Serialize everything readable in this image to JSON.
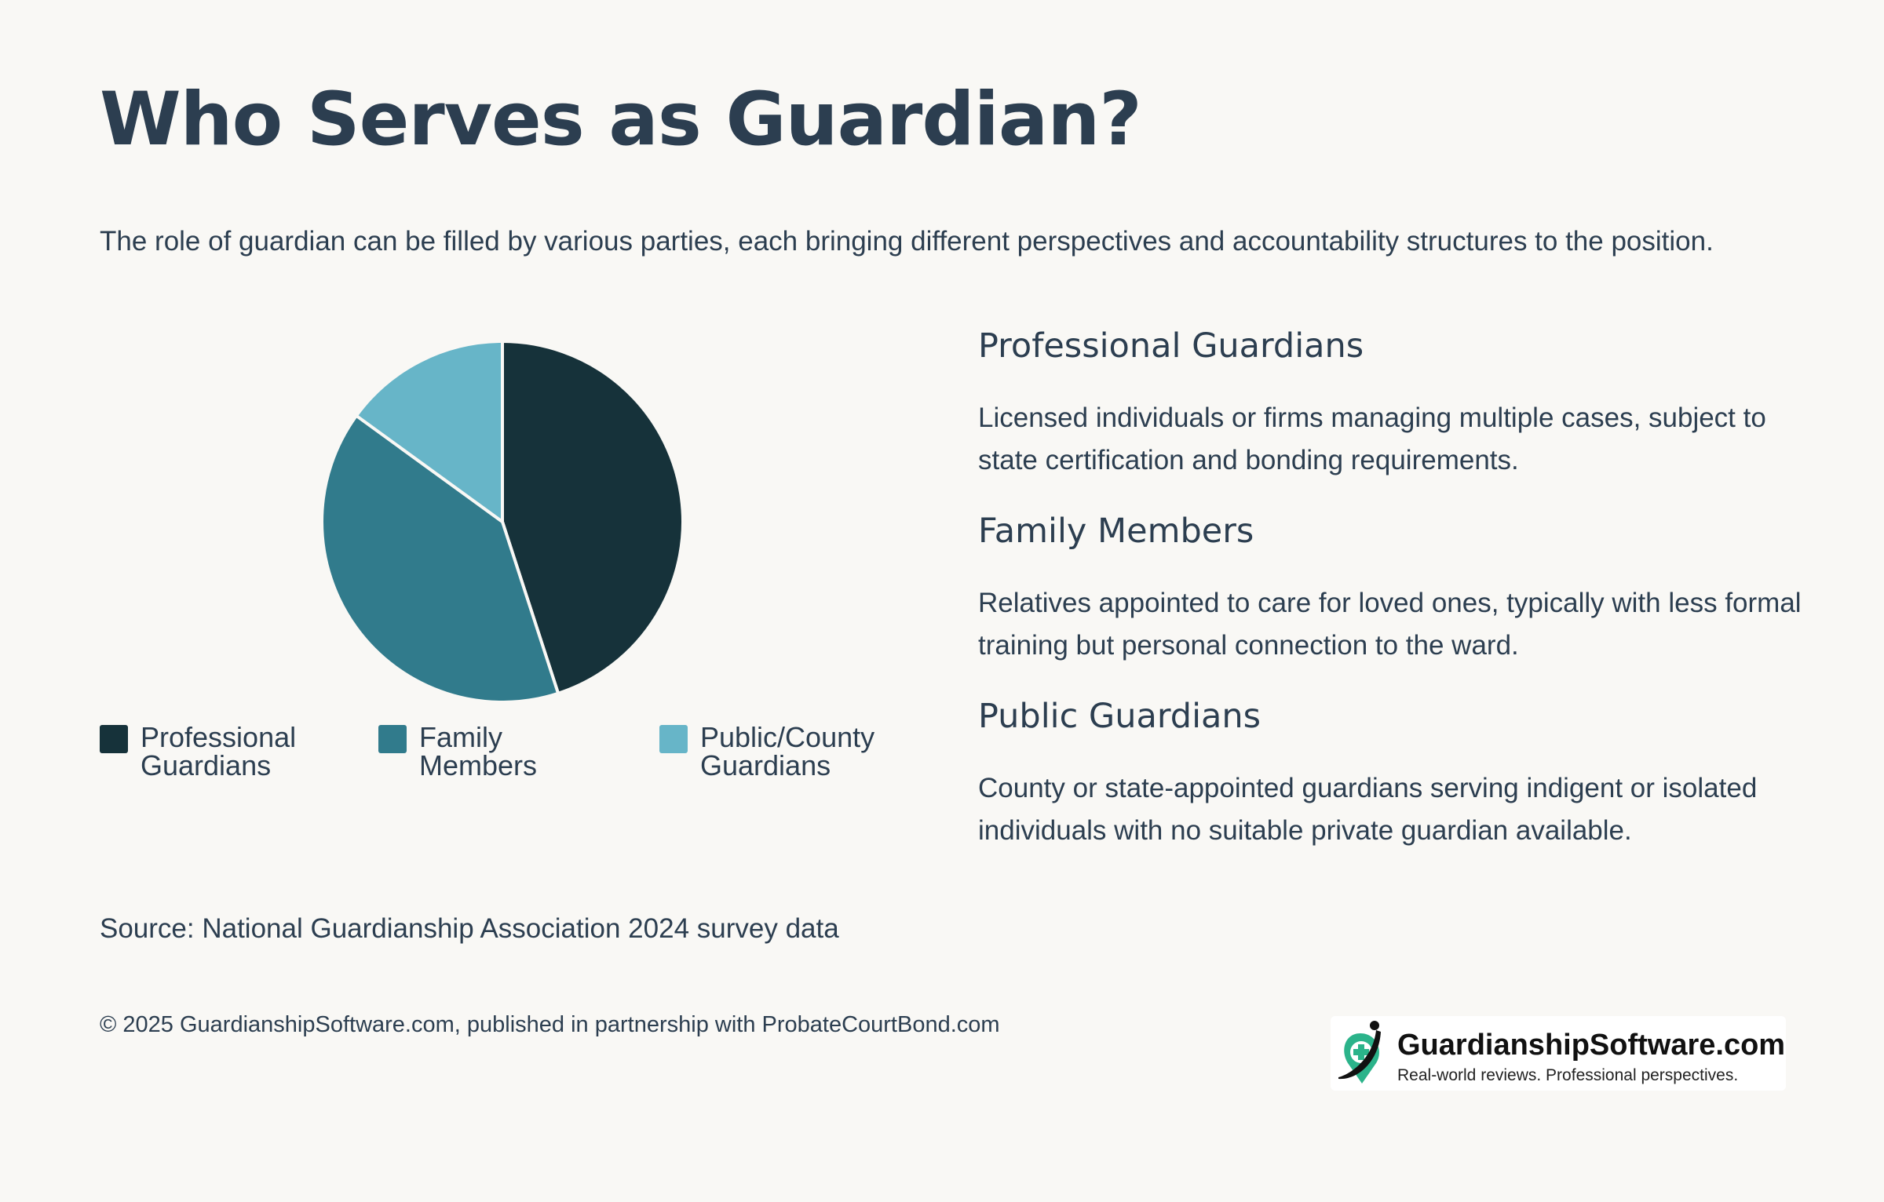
{
  "header": {
    "title": "Who Serves as Guardian?",
    "subtitle": "The role of guardian can be filled by various parties, each bringing different perspectives and accountability structures to the position."
  },
  "chart_data": {
    "type": "pie",
    "categories": [
      "Professional Guardians",
      "Family Members",
      "Public/County Guardians"
    ],
    "values": [
      45,
      40,
      15
    ],
    "colors": [
      "#16323a",
      "#317b8c",
      "#67b5c8"
    ],
    "legend": "bottom"
  },
  "legend": {
    "items": [
      {
        "line1": "Professional",
        "line2": "Guardians"
      },
      {
        "line1": "Family",
        "line2": "Members"
      },
      {
        "line1": "Public/County",
        "line2": "Guardians"
      }
    ]
  },
  "sections": [
    {
      "heading": "Professional Guardians",
      "body": "Licensed individuals or firms managing multiple cases, subject to state certification and bonding requirements."
    },
    {
      "heading": "Family Members",
      "body": "Relatives appointed to care for loved ones, typically with less formal training but personal connection to the ward."
    },
    {
      "heading": "Public Guardians",
      "body": "County or state-appointed guardians serving indigent or isolated individuals with no suitable private guardian available."
    }
  ],
  "source": "Source: National Guardianship Association 2024 survey data",
  "footer": "© 2025 GuardianshipSoftware.com, published in partnership with ProbateCourtBond.com",
  "logo": {
    "name": "GuardianshipSoftware.com",
    "tagline": "Real-world reviews. Professional perspectives."
  }
}
